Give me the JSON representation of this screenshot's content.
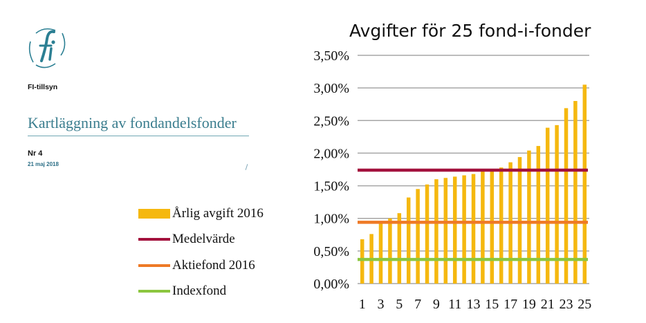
{
  "report": {
    "series": "FI-tillsyn",
    "title": "Kartläggning av fondandelsfonder",
    "number": "Nr 4",
    "date": "21 maj 2018"
  },
  "colors": {
    "brand": "#3a7d8e",
    "bars": "#f5b80f",
    "mean": "#a3113d",
    "equity": "#ee7a26",
    "index": "#8cc63f",
    "grid": "#a6a6a6"
  },
  "chart_data": {
    "type": "bar",
    "title": "Avgifter för 25 fond-i-fonder",
    "categories": [
      "1",
      "2",
      "3",
      "4",
      "5",
      "6",
      "7",
      "8",
      "9",
      "10",
      "11",
      "12",
      "13",
      "14",
      "15",
      "16",
      "17",
      "18",
      "19",
      "20",
      "21",
      "22",
      "23",
      "24",
      "25"
    ],
    "x_tick_labels": [
      "1",
      "3",
      "5",
      "7",
      "9",
      "11",
      "13",
      "15",
      "17",
      "19",
      "21",
      "23",
      "25"
    ],
    "y_ticks": [
      "0,00%",
      "0,50%",
      "1,00%",
      "1,50%",
      "2,00%",
      "2,50%",
      "3,00%",
      "3,50%"
    ],
    "ylim": [
      0,
      3.5
    ],
    "series": [
      {
        "name": "Årlig avgift 2016",
        "kind": "bar",
        "values": [
          0.68,
          0.76,
          0.95,
          1.0,
          1.08,
          1.32,
          1.45,
          1.52,
          1.6,
          1.62,
          1.64,
          1.66,
          1.68,
          1.73,
          1.75,
          1.78,
          1.86,
          1.94,
          2.04,
          2.11,
          2.39,
          2.43,
          2.69,
          2.8,
          3.05
        ]
      },
      {
        "name": "Medelvärde",
        "kind": "line",
        "value": 1.74
      },
      {
        "name": "Aktiefond 2016",
        "kind": "line",
        "value": 0.94
      },
      {
        "name": "Indexfond",
        "kind": "line",
        "value": 0.37
      }
    ],
    "grid": true,
    "legend": "left"
  }
}
